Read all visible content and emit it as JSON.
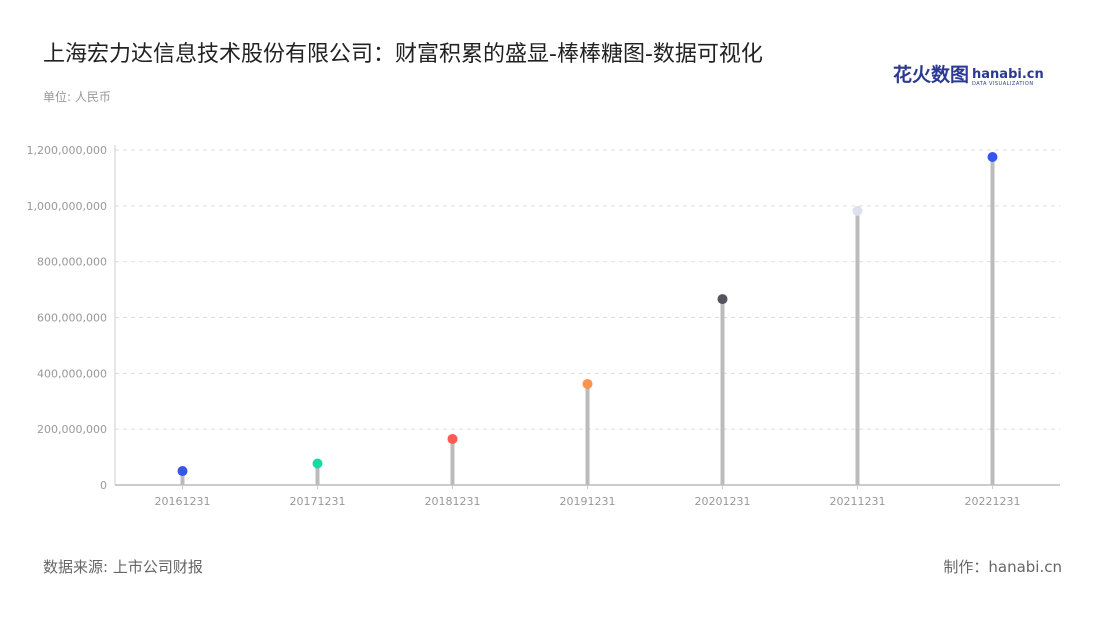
{
  "title": "上海宏力达信息技术股份有限公司：财富积累的盛显-棒棒糖图-数据可视化",
  "logo": {
    "cn": "花火数图",
    "en": "hanabi.cn",
    "sub": "DATA VISUALIZATION"
  },
  "source": "数据来源: 上市公司财报",
  "maker": "制作：hanabi.cn",
  "chart_data": {
    "type": "lollipop",
    "title": "上海宏力达信息技术股份有限公司：财富积累的盛显-棒棒糖图-数据可视化",
    "ylabel": "单位: 人民币",
    "categories": [
      "20161231",
      "20171231",
      "20181231",
      "20191231",
      "20201231",
      "20211231",
      "20221231"
    ],
    "values": [
      50000000,
      77000000,
      165000000,
      362000000,
      666000000,
      982000000,
      1175000000
    ],
    "colors": [
      "#3656e8",
      "#12dca4",
      "#ff5a52",
      "#ff924f",
      "#55545e",
      "#dde1ec",
      "#3656e8"
    ],
    "stem_color": "#bbbbbb",
    "ylim": [
      0,
      1200000000
    ],
    "yticks": [
      "0",
      "200,000,000",
      "400,000,000",
      "600,000,000",
      "800,000,000",
      "1,000,000,000",
      "1,200,000,000"
    ],
    "grid": true
  }
}
